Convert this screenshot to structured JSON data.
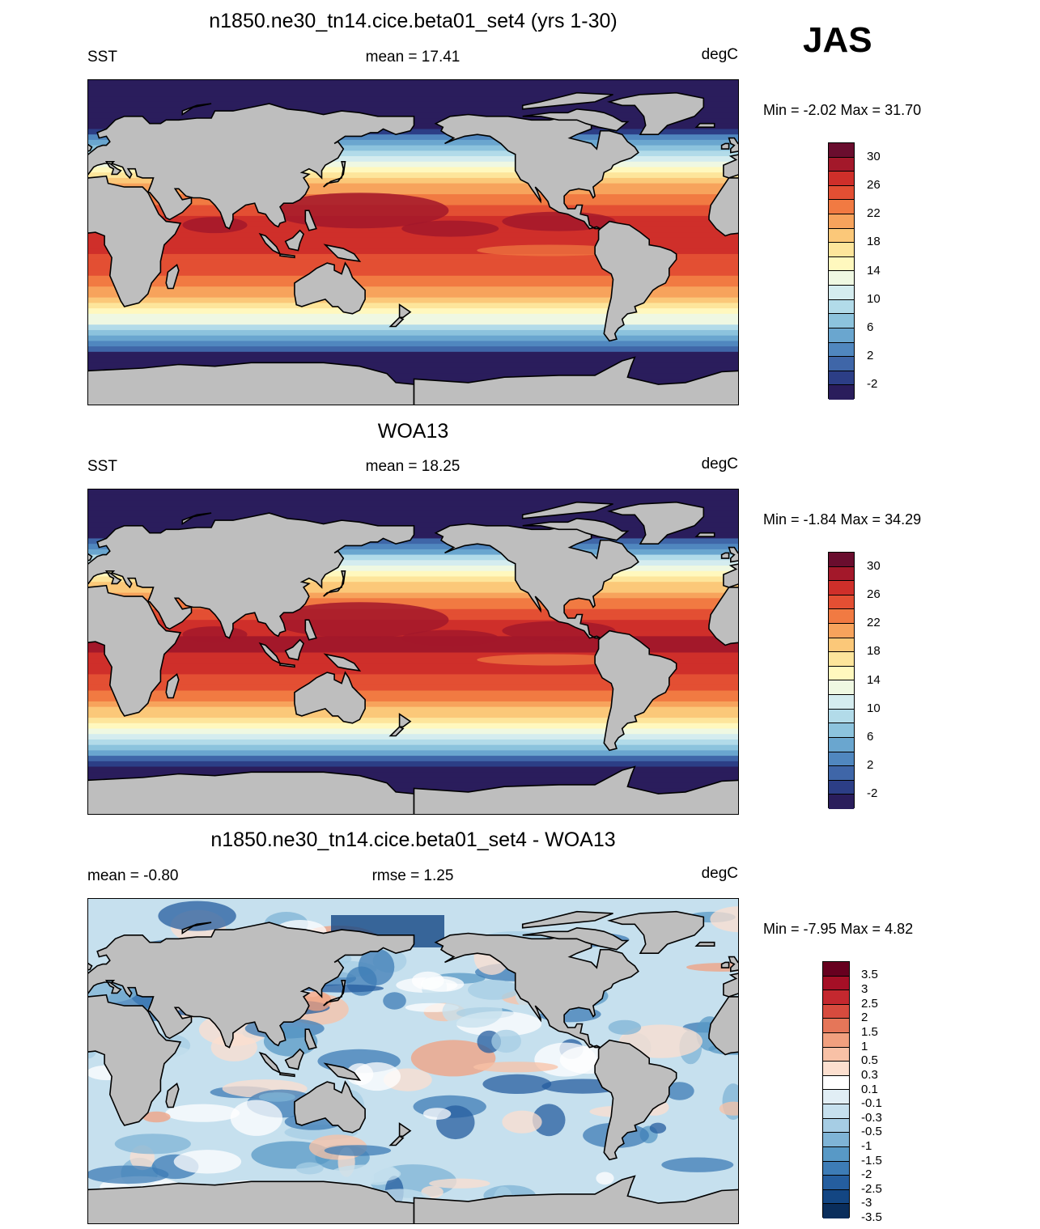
{
  "season": "JAS",
  "panels": [
    {
      "title": "n1850.ne30_tn14.cice.beta01_set4 (yrs 1-30)",
      "left_label": "SST",
      "center_label": "mean =  17.41",
      "right_label": "degC",
      "minmax": "Min =  -2.02 Max =  31.70",
      "map_kind": "sst_model"
    },
    {
      "title": "WOA13",
      "left_label": "SST",
      "center_label": "mean =  18.25",
      "right_label": "degC",
      "minmax": "Min =  -1.84 Max =  34.29",
      "map_kind": "sst_obs"
    },
    {
      "title": "n1850.ne30_tn14.cice.beta01_set4 - WOA13",
      "left_label": "mean =  -0.80",
      "center_label": "rmse =   1.25",
      "right_label": "degC",
      "minmax": "Min =  -7.95 Max =   4.82",
      "map_kind": "diff"
    }
  ],
  "sst_colorbar": {
    "colors": [
      "#6a0d2e",
      "#a3182a",
      "#cf2f2a",
      "#e34f33",
      "#f17a42",
      "#f7a35c",
      "#fbc879",
      "#fde59b",
      "#fff8be",
      "#eff8e2",
      "#d4ecef",
      "#b2dbe9",
      "#8cc3dd",
      "#6aa6cf",
      "#5087bf",
      "#3f66a8",
      "#2c3e86",
      "#2a1d5c"
    ],
    "labels": [
      "30",
      "26",
      "22",
      "18",
      "14",
      "10",
      "6",
      "2",
      "-2"
    ]
  },
  "diff_colorbar": {
    "colors": [
      "#67001f",
      "#a50f26",
      "#c4282f",
      "#d74b3e",
      "#e57659",
      "#f1a07f",
      "#f8c1a6",
      "#fcdfcf",
      "#ffffff",
      "#e1eef5",
      "#c6e0ee",
      "#a6cde4",
      "#7fb4d6",
      "#5899c6",
      "#3d7cb6",
      "#255e9f",
      "#134683",
      "#0a2e5c"
    ],
    "labels": [
      "3.5",
      "3",
      "2.5",
      "2",
      "1.5",
      "1",
      "0.5",
      "0.3",
      "0.1",
      "-0.1",
      "-0.3",
      "-0.5",
      "-1",
      "-1.5",
      "-2",
      "-2.5",
      "-3",
      "-3.5"
    ]
  },
  "land_color": "#bebebe"
}
